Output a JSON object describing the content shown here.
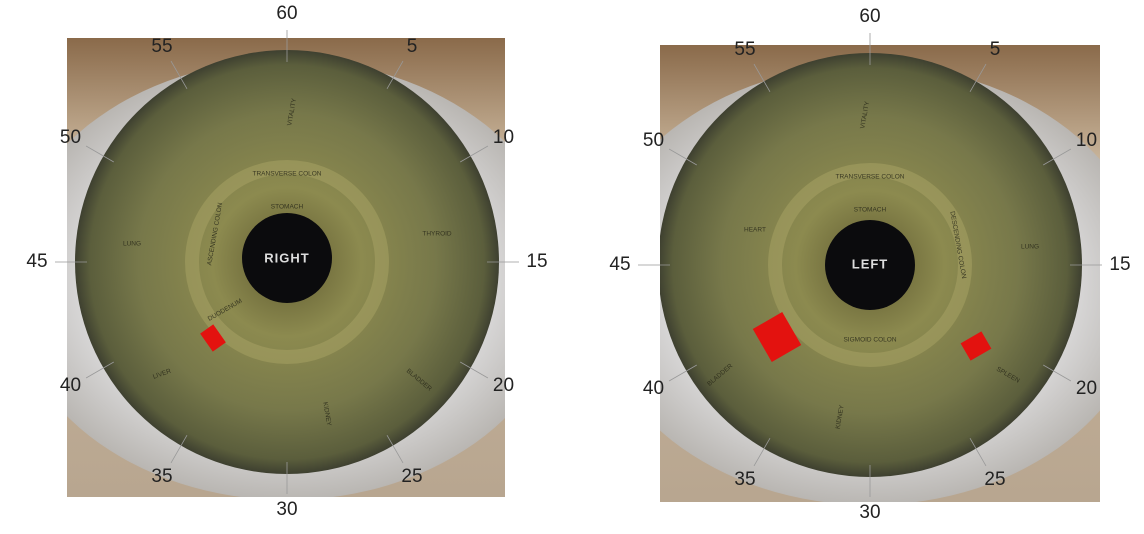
{
  "eyes": [
    {
      "label": "RIGHT",
      "clock": [
        "5",
        "10",
        "15",
        "20",
        "25",
        "30",
        "35",
        "40",
        "45",
        "50",
        "55",
        "60"
      ],
      "zones": [
        "TRANSVERSE COLON",
        "STOMACH",
        "ASCENDING COLON",
        "LUNG",
        "DUODENUM",
        "LIVER",
        "KIDNEY",
        "BLADDER",
        "THYROID",
        "VITALITY"
      ]
    },
    {
      "label": "LEFT",
      "clock": [
        "5",
        "10",
        "15",
        "20",
        "25",
        "30",
        "35",
        "40",
        "45",
        "50",
        "55",
        "60"
      ],
      "zones": [
        "TRANSVERSE COLON",
        "STOMACH",
        "DESCENDING COLON",
        "LUNG",
        "SIGMOID COLON",
        "SPLEEN",
        "HEART",
        "VITALITY",
        "KIDNEY",
        "BLADDER"
      ]
    }
  ]
}
